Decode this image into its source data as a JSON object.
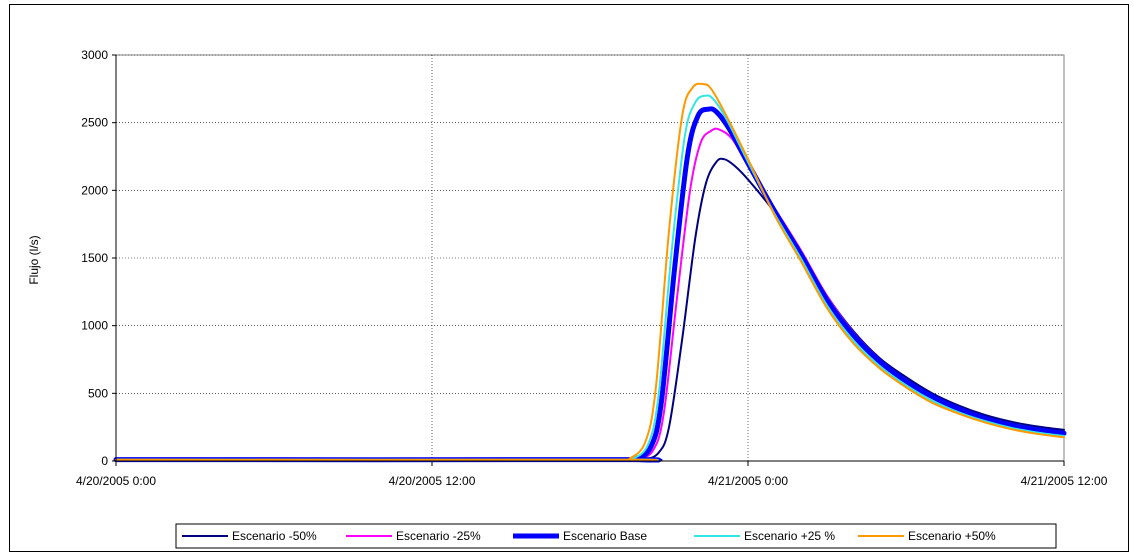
{
  "chart_data": {
    "type": "line",
    "title": "",
    "xlabel": "",
    "ylabel": "Flujo (l/s)",
    "ylim": [
      0,
      3000
    ],
    "y_ticks": [
      "0",
      "500",
      "1000",
      "1500",
      "2000",
      "2500",
      "3000"
    ],
    "x_range_hours": [
      0,
      36
    ],
    "x_ticks": [
      {
        "label": "4/20/2005 0:00",
        "hour": 0
      },
      {
        "label": "4/20/2005 12:00",
        "hour": 12
      },
      {
        "label": "4/21/2005 0:00",
        "hour": 24
      },
      {
        "label": "4/21/2005 12:00",
        "hour": 36
      }
    ],
    "grid": true,
    "legend_position": "bottom",
    "series": [
      {
        "name": "Escenario -50%",
        "color": "#000080",
        "hours": [
          0,
          19.0,
          20.0,
          20.6,
          21.0,
          21.5,
          22.0,
          22.4,
          22.8,
          23.1,
          23.5,
          24.0,
          25.0,
          26.0,
          27.0,
          28.0,
          29.0,
          30.0,
          31.0,
          32.0,
          33.0,
          34.0,
          35.0,
          36.0
        ],
        "values": [
          10,
          10,
          12,
          60,
          250,
          900,
          1650,
          2050,
          2210,
          2230,
          2180,
          2080,
          1840,
          1550,
          1220,
          960,
          760,
          620,
          500,
          410,
          340,
          290,
          255,
          230
        ]
      },
      {
        "name": "Escenario -25%",
        "color": "#FF00FF",
        "hours": [
          0,
          19.0,
          19.8,
          20.4,
          20.8,
          21.3,
          21.8,
          22.2,
          22.6,
          22.9,
          23.4,
          24.0,
          25.0,
          26.0,
          27.0,
          28.0,
          29.0,
          30.0,
          31.0,
          32.0,
          33.0,
          34.0,
          35.0,
          36.0
        ],
        "values": [
          10,
          10,
          14,
          80,
          350,
          1200,
          2000,
          2350,
          2440,
          2450,
          2380,
          2180,
          1870,
          1560,
          1220,
          950,
          750,
          600,
          480,
          390,
          320,
          270,
          235,
          210
        ]
      },
      {
        "name": "Escenario Base",
        "color": "#0000FF",
        "width": 5,
        "hours": [
          0,
          19.0,
          19.7,
          20.3,
          20.7,
          21.2,
          21.7,
          22.1,
          22.5,
          22.8,
          23.3,
          24.0,
          25.0,
          26.0,
          27.0,
          28.0,
          29.0,
          30.0,
          31.0,
          32.0,
          33.0,
          34.0,
          35.0,
          36.0
        ],
        "values": [
          10,
          10,
          15,
          100,
          420,
          1400,
          2250,
          2550,
          2600,
          2580,
          2450,
          2200,
          1850,
          1530,
          1190,
          930,
          735,
          590,
          475,
          385,
          315,
          265,
          230,
          205
        ]
      },
      {
        "name": "Escenario +25 %",
        "color": "#33E6E6",
        "hours": [
          0,
          19.0,
          19.6,
          20.2,
          20.6,
          21.1,
          21.6,
          22.0,
          22.4,
          22.7,
          23.2,
          24.0,
          25.0,
          26.0,
          27.0,
          28.0,
          29.0,
          30.0,
          31.0,
          32.0,
          33.0,
          34.0,
          35.0,
          36.0
        ],
        "values": [
          10,
          10,
          16,
          120,
          480,
          1550,
          2400,
          2650,
          2700,
          2670,
          2520,
          2210,
          1830,
          1500,
          1150,
          890,
          700,
          560,
          445,
          360,
          295,
          245,
          210,
          185
        ]
      },
      {
        "name": "Escenario +50%",
        "color": "#FF9900",
        "hours": [
          0,
          19.0,
          19.5,
          20.1,
          20.5,
          21.0,
          21.5,
          21.9,
          22.3,
          22.6,
          23.1,
          24.0,
          25.0,
          26.0,
          27.0,
          28.0,
          29.0,
          30.0,
          31.0,
          32.0,
          33.0,
          34.0,
          35.0,
          36.0
        ],
        "values": [
          10,
          10,
          18,
          140,
          540,
          1700,
          2550,
          2760,
          2785,
          2750,
          2580,
          2230,
          1820,
          1480,
          1130,
          870,
          685,
          545,
          430,
          350,
          285,
          235,
          200,
          175
        ]
      }
    ]
  }
}
